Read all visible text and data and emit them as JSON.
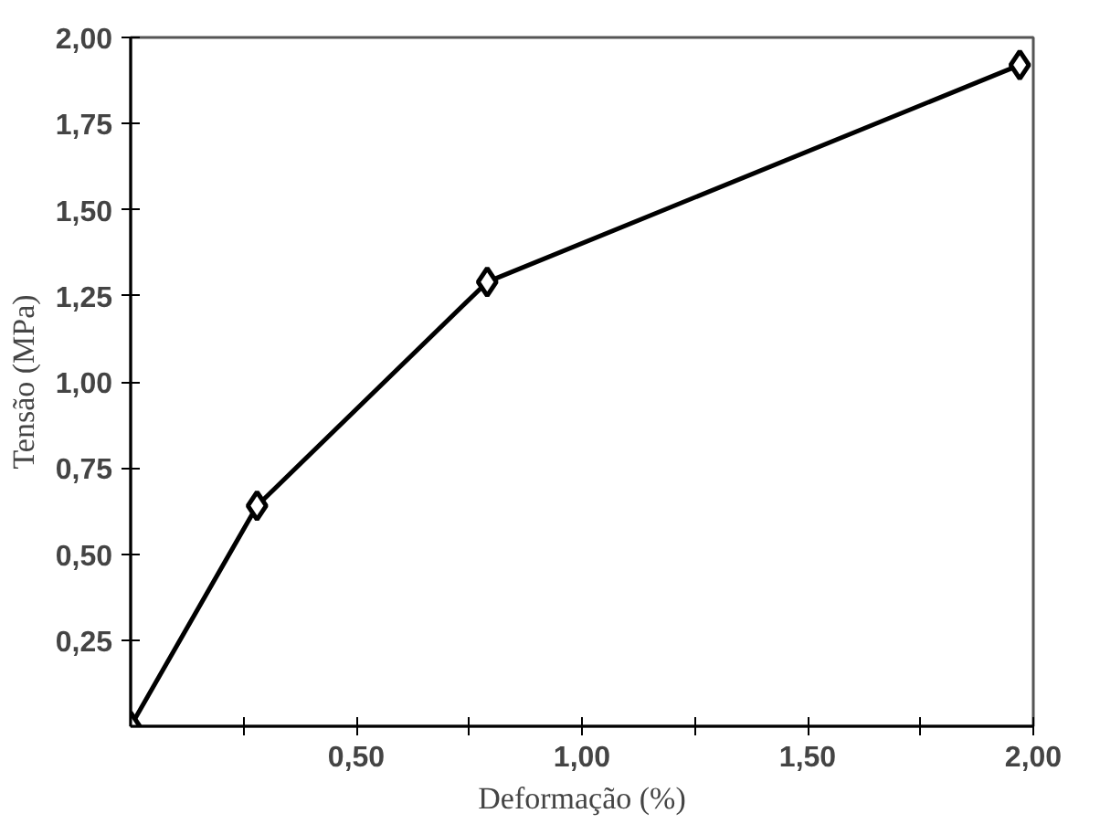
{
  "chart_data": {
    "type": "line",
    "xlabel": "Deformação (%)",
    "ylabel": "Tensão (MPa)",
    "x": [
      0,
      0.28,
      0.79,
      1.97
    ],
    "series": [
      {
        "color": "#000000",
        "values": [
          0,
          0.64,
          1.29,
          1.92
        ]
      }
    ],
    "xlim": [
      0,
      2
    ],
    "ylim": [
      0,
      2
    ],
    "xticks": [
      {
        "value": 0.25,
        "label": null
      },
      {
        "value": 0.5,
        "label": "0,50"
      },
      {
        "value": 0.75,
        "label": null
      },
      {
        "value": 1.0,
        "label": "1,00"
      },
      {
        "value": 1.25,
        "label": null
      },
      {
        "value": 1.5,
        "label": "1,50"
      },
      {
        "value": 1.75,
        "label": null
      },
      {
        "value": 2.0,
        "label": "2,00"
      }
    ],
    "yticks": [
      {
        "value": 0.25,
        "label": "0,25"
      },
      {
        "value": 0.5,
        "label": "0,50"
      },
      {
        "value": 0.75,
        "label": "0,75"
      },
      {
        "value": 1.0,
        "label": "1,00"
      },
      {
        "value": 1.25,
        "label": "1,25"
      },
      {
        "value": 1.5,
        "label": "1,50"
      },
      {
        "value": 1.75,
        "label": "1,75"
      },
      {
        "value": 2.0,
        "label": "2,00"
      }
    ],
    "grid": false,
    "marker": "diamond",
    "line_style": "solid"
  }
}
